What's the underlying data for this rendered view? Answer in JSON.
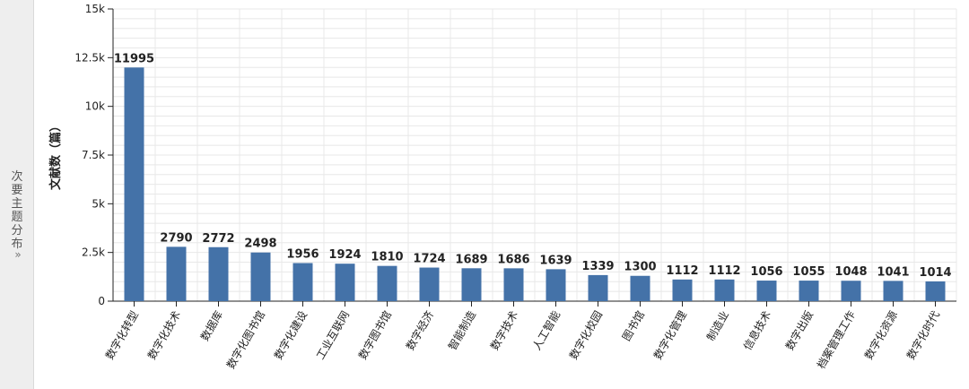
{
  "side_tab": {
    "label": "次要主题分布",
    "chevron": "»"
  },
  "colors": {
    "bar": "#4472a8",
    "grid": "#e8e8e8",
    "axis": "#222222"
  },
  "chart_data": {
    "type": "bar",
    "ylabel": "文献数（篇）",
    "ylim": [
      0,
      15000
    ],
    "y_ticks": [
      {
        "value": 0,
        "label": "0"
      },
      {
        "value": 2500,
        "label": "2.5k"
      },
      {
        "value": 5000,
        "label": "5k"
      },
      {
        "value": 7500,
        "label": "7.5k"
      },
      {
        "value": 10000,
        "label": "10k"
      },
      {
        "value": 12500,
        "label": "12.5k"
      },
      {
        "value": 15000,
        "label": "15k"
      }
    ],
    "grid": true,
    "categories": [
      "数字化转型",
      "数字化技术",
      "数据库",
      "数字化图书馆",
      "数字化建设",
      "工业互联网",
      "数字图书馆",
      "数字经济",
      "智能制造",
      "数字技术",
      "人工智能",
      "数字化校园",
      "图书馆",
      "数字化管理",
      "制造业",
      "信息技术",
      "数字出版",
      "档案管理工作",
      "数字化资源",
      "数字化时代"
    ],
    "values": [
      11995,
      2790,
      2772,
      2498,
      1956,
      1924,
      1810,
      1724,
      1689,
      1686,
      1639,
      1339,
      1300,
      1112,
      1112,
      1056,
      1055,
      1048,
      1041,
      1014
    ],
    "value_labels": [
      "11995",
      "2790",
      "2772",
      "2498",
      "1956",
      "1924",
      "1810",
      "1724",
      "1689",
      "1686",
      "1639",
      "1339",
      "1300",
      "1112",
      "1112",
      "1056",
      "1055",
      "1048",
      "1041",
      "1014"
    ]
  }
}
